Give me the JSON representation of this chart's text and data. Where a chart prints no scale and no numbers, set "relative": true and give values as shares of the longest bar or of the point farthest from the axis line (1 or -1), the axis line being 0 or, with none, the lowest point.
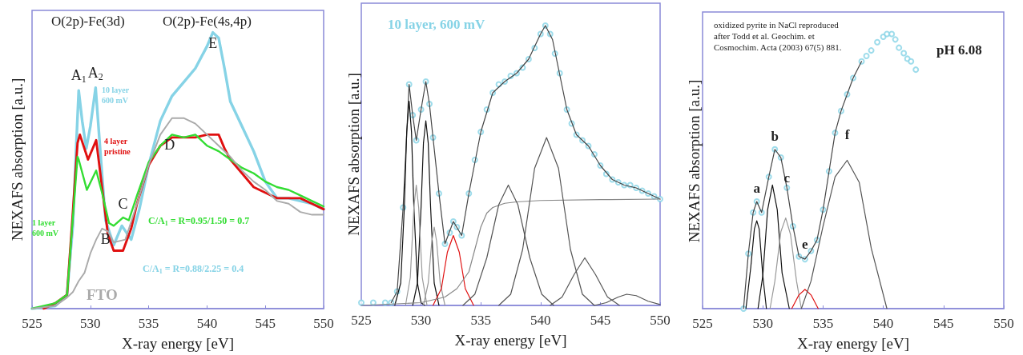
{
  "chart_data": [
    {
      "type": "line",
      "relative": true,
      "xlabel": "X-ray energy [eV]",
      "ylabel": "NEXAFS absorption [a.u.]",
      "xlim": [
        525,
        550
      ],
      "xticks": [
        525,
        530,
        535,
        540,
        545,
        550
      ],
      "grid": false,
      "marker": "none",
      "line_style": "solid",
      "annotations": [
        "O(2p)-Fe(3d)",
        "O(2p)-Fe(4s,4p)",
        {
          "text": "A$_{1}$",
          "x": 529.0,
          "y": 0.79
        },
        {
          "text": "A$_{2}$",
          "x": 530.45,
          "y": 0.8
        },
        {
          "text": "B",
          "x": 531.3,
          "y": 0.29
        },
        {
          "text": "C",
          "x": 532.8,
          "y": 0.33
        },
        {
          "text": "D",
          "x": 536.8,
          "y": 0.63
        },
        {
          "text": "E",
          "x": 540.5,
          "y": 1.0
        },
        "C/A$_{1}$ = R=0.95/1.50 = 0.7",
        "C/A$_{1}$ = R=0.88/2.25 = 0.4"
      ],
      "series": [
        {
          "name": "10 layer 600 mV",
          "color": "#86d3e6",
          "x": [
            525,
            527,
            528,
            528.5,
            528.8,
            529.0,
            529.3,
            529.65,
            530.0,
            530.45,
            530.8,
            531.3,
            532.0,
            532.7,
            533.5,
            534.2,
            535,
            536,
            537,
            538,
            539,
            540,
            540.5,
            541,
            541.5,
            542,
            543,
            544,
            545,
            546,
            547,
            548,
            549,
            550
          ],
          "values": [
            0,
            0.01,
            0.05,
            0.3,
            0.6,
            0.79,
            0.68,
            0.58,
            0.66,
            0.8,
            0.6,
            0.32,
            0.23,
            0.3,
            0.25,
            0.36,
            0.52,
            0.68,
            0.77,
            0.82,
            0.87,
            0.95,
            1.0,
            0.98,
            0.87,
            0.75,
            0.66,
            0.57,
            0.46,
            0.4,
            0.4,
            0.39,
            0.38,
            0.36
          ]
        },
        {
          "name": "4 layer pristine",
          "color": "#e01010",
          "x": [
            526,
            527,
            528,
            528.5,
            528.9,
            529.1,
            529.8,
            530.5,
            531,
            531.5,
            532,
            532.8,
            533.5,
            534,
            535,
            536,
            537,
            538,
            539,
            540,
            541,
            541.5,
            542,
            543,
            544,
            545,
            546,
            547,
            548,
            549,
            550
          ],
          "values": [
            0,
            0.02,
            0.05,
            0.35,
            0.6,
            0.63,
            0.54,
            0.61,
            0.44,
            0.27,
            0.21,
            0.21,
            0.29,
            0.38,
            0.52,
            0.59,
            0.62,
            0.62,
            0.62,
            0.63,
            0.63,
            0.58,
            0.54,
            0.49,
            0.44,
            0.42,
            0.4,
            0.4,
            0.4,
            0.38,
            0.36
          ]
        },
        {
          "name": "1 layer 600 mV",
          "color": "#33dd33",
          "x": [
            525,
            527,
            528,
            528.5,
            528.9,
            529.0,
            529.7,
            530.5,
            531,
            531.6,
            532,
            532.8,
            533.3,
            534,
            535,
            536,
            537,
            538,
            539,
            540,
            541,
            542,
            543,
            544,
            545,
            546,
            547,
            548,
            549,
            550
          ],
          "values": [
            0,
            0.02,
            0.05,
            0.33,
            0.55,
            0.54,
            0.43,
            0.5,
            0.42,
            0.31,
            0.3,
            0.33,
            0.32,
            0.41,
            0.53,
            0.59,
            0.63,
            0.62,
            0.63,
            0.59,
            0.57,
            0.54,
            0.51,
            0.49,
            0.46,
            0.44,
            0.43,
            0.41,
            0.39,
            0.37
          ]
        },
        {
          "name": "FTO",
          "color": "#aaaaaa",
          "x": [
            525,
            527,
            528,
            528.5,
            529,
            529.5,
            530,
            530.5,
            531,
            531.5,
            532,
            533,
            534,
            535,
            536,
            537,
            538,
            539,
            540,
            541,
            542,
            543,
            544,
            545,
            546,
            547,
            548,
            549,
            550
          ],
          "values": [
            0,
            0.01,
            0.04,
            0.06,
            0.1,
            0.13,
            0.2,
            0.25,
            0.29,
            0.28,
            0.24,
            0.25,
            0.38,
            0.52,
            0.63,
            0.69,
            0.69,
            0.67,
            0.63,
            0.59,
            0.55,
            0.5,
            0.46,
            0.43,
            0.39,
            0.38,
            0.35,
            0.34,
            0.34
          ]
        }
      ]
    },
    {
      "type": "line",
      "relative": true,
      "title": "10 layer, 600 mV",
      "xlabel": "X-ray energy [eV]",
      "ylabel": "NEXAFS absorption [a.u.]",
      "xlim": [
        525,
        550
      ],
      "xticks": [
        525,
        530,
        535,
        540,
        545,
        550
      ],
      "grid": false,
      "marker": "none",
      "line_style": "solid",
      "series": [
        {
          "type": "scatter",
          "marker": "circle",
          "color": "#86d3e6",
          "x": [
            525,
            526,
            527,
            527.5,
            528,
            528.5,
            529,
            529.3,
            529.6,
            530,
            530.4,
            530.7,
            531,
            531.5,
            532,
            532.4,
            532.7,
            533,
            533.4,
            534,
            534.5,
            535,
            535.5,
            536,
            536.5,
            537,
            537.5,
            538,
            538.5,
            539,
            539.5,
            540,
            540.4,
            540.8,
            541.2,
            541.6,
            542.2,
            542.6,
            543,
            543.5,
            544,
            544.5,
            545,
            545.5,
            546,
            546.5,
            547,
            547.5,
            548,
            548.5,
            549,
            549.5,
            550
          ],
          "values": [
            0.01,
            0.01,
            0.01,
            0.01,
            0.05,
            0.35,
            0.79,
            0.68,
            0.59,
            0.7,
            0.8,
            0.72,
            0.6,
            0.4,
            0.22,
            0.26,
            0.3,
            0.28,
            0.25,
            0.4,
            0.52,
            0.62,
            0.7,
            0.76,
            0.79,
            0.8,
            0.82,
            0.83,
            0.85,
            0.88,
            0.92,
            0.97,
            1.0,
            0.97,
            0.9,
            0.83,
            0.7,
            0.65,
            0.61,
            0.59,
            0.57,
            0.54,
            0.5,
            0.47,
            0.45,
            0.44,
            0.43,
            0.43,
            0.42,
            0.41,
            0.4,
            0.39,
            0.38
          ]
        },
        {
          "color": "#444444",
          "x": [
            527.5,
            528,
            528.5,
            529,
            529.3,
            529.6,
            530,
            530.4,
            530.7,
            531,
            531.5,
            532,
            532.7,
            533.4,
            534,
            535,
            536,
            537,
            538,
            539,
            540,
            540.4,
            541,
            542.2,
            543,
            544,
            545,
            546,
            547,
            548,
            549,
            550
          ],
          "values": [
            0.01,
            0.05,
            0.35,
            0.79,
            0.68,
            0.59,
            0.7,
            0.8,
            0.72,
            0.6,
            0.4,
            0.22,
            0.3,
            0.25,
            0.4,
            0.62,
            0.76,
            0.8,
            0.83,
            0.88,
            0.97,
            1.0,
            0.95,
            0.7,
            0.61,
            0.57,
            0.5,
            0.45,
            0.43,
            0.42,
            0.4,
            0.38
          ]
        },
        {
          "color": "#111111",
          "x": [
            527.8,
            528.3,
            528.6,
            528.8,
            529.0,
            529.2,
            529.4,
            529.7,
            530.0,
            530.3
          ],
          "values": [
            0,
            0.08,
            0.35,
            0.62,
            0.73,
            0.62,
            0.35,
            0.08,
            0.01,
            0
          ]
        },
        {
          "color": "#111111",
          "x": [
            529.3,
            529.7,
            530.0,
            530.2,
            530.4,
            530.6,
            530.8,
            531.1,
            531.5
          ],
          "values": [
            0,
            0.08,
            0.35,
            0.58,
            0.66,
            0.58,
            0.35,
            0.08,
            0
          ]
        },
        {
          "color": "#999999",
          "x": [
            528.7,
            529.1,
            529.4,
            529.6,
            529.8,
            530.1,
            530.5
          ],
          "values": [
            0,
            0.1,
            0.35,
            0.43,
            0.35,
            0.1,
            0
          ]
        },
        {
          "color": "#999999",
          "x": [
            530.2,
            530.6,
            530.9,
            531.1,
            531.3,
            531.6,
            532.0
          ],
          "values": [
            0,
            0.08,
            0.23,
            0.28,
            0.23,
            0.08,
            0
          ]
        },
        {
          "color": "#e01010",
          "x": [
            531.0,
            531.7,
            532.2,
            532.7,
            533.2,
            533.7,
            534.4
          ],
          "values": [
            0,
            0.06,
            0.19,
            0.25,
            0.19,
            0.06,
            0
          ]
        },
        {
          "color": "#888888",
          "x": [
            525,
            530,
            532,
            533,
            534,
            534.5,
            535,
            535.5,
            536,
            537,
            538,
            540,
            545,
            550
          ],
          "values": [
            0,
            0.01,
            0.03,
            0.06,
            0.12,
            0.2,
            0.28,
            0.33,
            0.35,
            0.365,
            0.37,
            0.375,
            0.378,
            0.38
          ]
        },
        {
          "color": "#555555",
          "x": [
            533.5,
            534.5,
            535.5,
            536.5,
            537.3,
            538.1,
            539.1,
            540.1,
            541.1
          ],
          "values": [
            0,
            0.04,
            0.17,
            0.36,
            0.43,
            0.36,
            0.17,
            0.04,
            0
          ]
        },
        {
          "color": "#555555",
          "x": [
            536.5,
            537.5,
            538.5,
            539.5,
            540.5,
            541.5,
            542.5,
            543.5,
            544.5
          ],
          "values": [
            0,
            0.04,
            0.2,
            0.49,
            0.6,
            0.49,
            0.2,
            0.04,
            0
          ]
        },
        {
          "color": "#555555",
          "x": [
            540.8,
            541.8,
            542.8,
            543.7,
            544.6,
            545.6,
            546.6
          ],
          "values": [
            0,
            0.03,
            0.11,
            0.17,
            0.11,
            0.03,
            0
          ]
        },
        {
          "color": "#555555",
          "x": [
            544.5,
            545.5,
            546.5,
            547.2,
            548,
            549,
            550
          ],
          "values": [
            0,
            0.01,
            0.03,
            0.04,
            0.035,
            0.015,
            0.003
          ]
        }
      ]
    },
    {
      "type": "line",
      "relative": true,
      "xlabel": "X-ray energy [eV]",
      "ylabel": "NEXAFS absorption [a.u.]",
      "xlim": [
        525,
        550
      ],
      "xticks": [
        525,
        530,
        535,
        540,
        545,
        550
      ],
      "grid": false,
      "marker": "none",
      "line_style": "solid",
      "annotations": [
        "oxidized pyrite in NaCl reproduced after Todd et al. Geochim. et Cosmochim. Acta (2003) 67(5) 881.",
        "pH 6.08",
        {
          "text": "a",
          "x": 529.5,
          "y": 0.39
        },
        {
          "text": "b",
          "x": 531.0,
          "y": 0.58
        },
        {
          "text": "c",
          "x": 532.0,
          "y": 0.44
        },
        {
          "text": "e",
          "x": 533.5,
          "y": 0.18
        },
        {
          "text": "f",
          "x": 537.0,
          "y": 0.54
        }
      ],
      "series": [
        {
          "type": "scatter",
          "marker": "circle",
          "color": "#86d3e6",
          "x": [
            528.4,
            528.8,
            529.2,
            529.5,
            529.9,
            530.5,
            531,
            531.5,
            532,
            532.5,
            533,
            533.5,
            534,
            534.5,
            535,
            535.5,
            536,
            536.5,
            537,
            537.5,
            538.2,
            538.6,
            539,
            539.5,
            540,
            540.3,
            540.7,
            541,
            541.3,
            541.7,
            542,
            542.3,
            542.7
          ],
          "values": [
            0,
            0.2,
            0.35,
            0.39,
            0.35,
            0.48,
            0.58,
            0.55,
            0.44,
            0.3,
            0.19,
            0.18,
            0.21,
            0.25,
            0.36,
            0.5,
            0.64,
            0.72,
            0.78,
            0.84,
            0.9,
            0.92,
            0.94,
            0.97,
            0.99,
            1.0,
            1.0,
            0.98,
            0.95,
            0.93,
            0.91,
            0.9,
            0.87
          ]
        },
        {
          "color": "#444444",
          "x": [
            528.4,
            528.8,
            529.2,
            529.5,
            529.9,
            530.5,
            531,
            531.5,
            532,
            532.5,
            533,
            533.5,
            534,
            534.5,
            535,
            535.5,
            536,
            536.5,
            537,
            537.5,
            538.2
          ],
          "values": [
            0,
            0.2,
            0.35,
            0.39,
            0.35,
            0.48,
            0.58,
            0.55,
            0.44,
            0.3,
            0.19,
            0.18,
            0.21,
            0.25,
            0.36,
            0.5,
            0.64,
            0.72,
            0.78,
            0.84,
            0.9
          ]
        },
        {
          "color": "#111111",
          "x": [
            528.6,
            529.0,
            529.3,
            529.5,
            529.7,
            530.0,
            530.3
          ],
          "values": [
            0,
            0.15,
            0.29,
            0.32,
            0.29,
            0.12,
            0
          ]
        },
        {
          "color": "#111111",
          "x": [
            529.6,
            530.0,
            530.4,
            530.8,
            531.2,
            531.6,
            532.2
          ],
          "values": [
            0,
            0.12,
            0.36,
            0.45,
            0.36,
            0.13,
            0
          ]
        },
        {
          "color": "#999999",
          "x": [
            530.6,
            531.0,
            531.5,
            531.9,
            532.3,
            532.8,
            533.2
          ],
          "values": [
            0,
            0.1,
            0.28,
            0.33,
            0.27,
            0.1,
            0
          ]
        },
        {
          "color": "#e01010",
          "x": [
            532.4,
            533.0,
            533.5,
            534.0,
            534.6
          ],
          "values": [
            0,
            0.05,
            0.07,
            0.05,
            0
          ]
        },
        {
          "color": "#555555",
          "x": [
            533.2,
            534,
            535,
            536,
            537,
            538,
            539,
            540.3
          ],
          "values": [
            0,
            0.1,
            0.3,
            0.48,
            0.54,
            0.46,
            0.22,
            0
          ]
        }
      ]
    }
  ]
}
